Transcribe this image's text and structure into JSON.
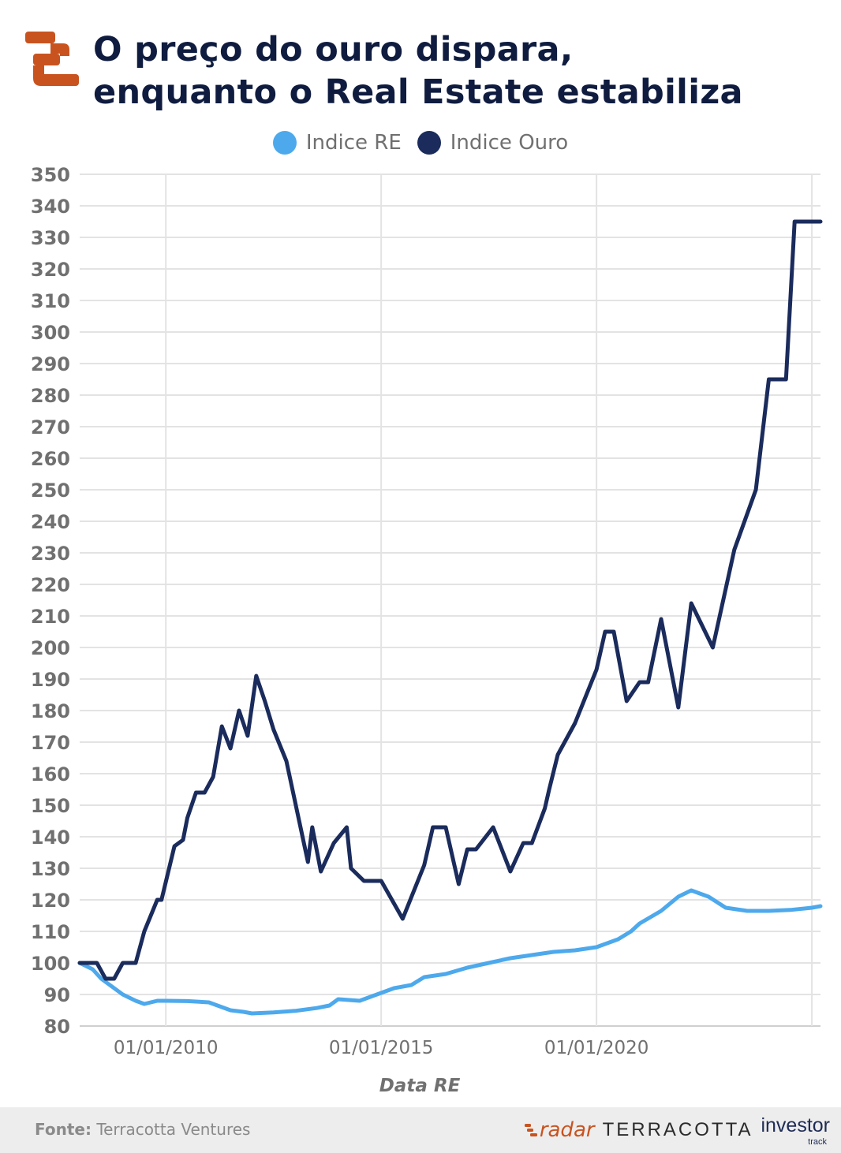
{
  "title": "O preço do ouro dispara,\nenquanto o Real Estate estabiliza",
  "legend": [
    {
      "label": "Indice RE",
      "color": "#4da9ec"
    },
    {
      "label": "Indice Ouro",
      "color": "#1a2b5c"
    }
  ],
  "footer": {
    "source_label": "Fonte:",
    "source_value": "Terracotta Ventures",
    "brand_radar": "radar",
    "brand_terracotta": "TERRACOTTA",
    "brand_investor": "investor",
    "brand_track": "track"
  },
  "colors": {
    "accent": "#c9531f",
    "gold_line": "#1a2b5c",
    "re_line": "#4da9ec",
    "grid": "#e3e3e3",
    "title": "#0f1c3f"
  },
  "icons": {
    "logo": "terracotta-logo-icon"
  },
  "chart_data": {
    "type": "line",
    "title": "O preço do ouro dispara, enquanto o Real Estate estabiliza",
    "xlabel": "Data RE",
    "ylabel": "",
    "x_ticks": [
      "01/01/2010",
      "01/01/2015",
      "01/01/2020"
    ],
    "x_range": [
      2008.0,
      2025.2
    ],
    "ylim": [
      80,
      350
    ],
    "y_ticks": [
      80,
      90,
      100,
      110,
      120,
      130,
      140,
      150,
      160,
      170,
      180,
      190,
      200,
      210,
      220,
      230,
      240,
      250,
      260,
      270,
      280,
      290,
      300,
      310,
      320,
      330,
      340,
      350
    ],
    "grid": true,
    "legend_position": "top-center",
    "series": [
      {
        "name": "Indice Ouro",
        "color": "#1a2b5c",
        "x": [
          2008.0,
          2008.4,
          2008.6,
          2008.8,
          2009.0,
          2009.3,
          2009.5,
          2009.8,
          2009.9,
          2010.2,
          2010.4,
          2010.5,
          2010.7,
          2010.9,
          2011.1,
          2011.3,
          2011.5,
          2011.7,
          2011.9,
          2012.1,
          2012.3,
          2012.5,
          2012.8,
          2013.3,
          2013.4,
          2013.6,
          2013.9,
          2014.2,
          2014.3,
          2014.6,
          2014.8,
          2015.0,
          2015.5,
          2016.0,
          2016.2,
          2016.5,
          2016.8,
          2017.0,
          2017.2,
          2017.6,
          2018.0,
          2018.3,
          2018.5,
          2018.8,
          2018.9,
          2019.1,
          2019.5,
          2020.0,
          2020.2,
          2020.4,
          2020.7,
          2021.0,
          2021.2,
          2021.5,
          2021.9,
          2022.2,
          2022.7,
          2023.2,
          2023.7,
          2024.0,
          2024.4,
          2024.6,
          2024.8,
          2025.0,
          2025.2
        ],
        "values": [
          100,
          100,
          95,
          95,
          100,
          100,
          110,
          120,
          120,
          137,
          139,
          146,
          154,
          154,
          159,
          175,
          168,
          180,
          172,
          191,
          183,
          174,
          164,
          132,
          143,
          129,
          138,
          143,
          130,
          126,
          126,
          126,
          114,
          131,
          143,
          143,
          125,
          136,
          136,
          143,
          129,
          138,
          138,
          149,
          155,
          166,
          176,
          193,
          205,
          205,
          183,
          189,
          189,
          209,
          181,
          214,
          200,
          231,
          250,
          285,
          285,
          335,
          335,
          335,
          335
        ]
      },
      {
        "name": "Indice RE",
        "color": "#4da9ec",
        "x": [
          2008.0,
          2008.3,
          2008.5,
          2008.8,
          2009.0,
          2009.3,
          2009.5,
          2009.8,
          2010.0,
          2010.5,
          2011.0,
          2011.5,
          2011.8,
          2012.0,
          2012.5,
          2013.0,
          2013.5,
          2013.8,
          2014.0,
          2014.5,
          2014.8,
          2015.0,
          2015.3,
          2015.7,
          2016.0,
          2016.5,
          2017.0,
          2017.5,
          2018.0,
          2018.5,
          2019.0,
          2019.5,
          2020.0,
          2020.5,
          2020.8,
          2021.0,
          2021.5,
          2021.9,
          2022.2,
          2022.6,
          2023.0,
          2023.5,
          2024.0,
          2024.5,
          2025.0,
          2025.2
        ],
        "values": [
          100,
          98,
          95,
          92,
          90,
          88,
          87,
          88,
          88,
          87.9,
          87.5,
          85,
          84.5,
          84,
          84.3,
          84.8,
          85.7,
          86.5,
          88.5,
          88,
          89.5,
          90.5,
          92,
          93,
          95.5,
          96.5,
          98.5,
          100,
          101.5,
          102.5,
          103.5,
          104,
          105,
          107.5,
          110,
          112.5,
          116.5,
          121,
          123,
          121,
          117.5,
          116.5,
          116.5,
          116.8,
          117.5,
          118
        ]
      }
    ]
  }
}
